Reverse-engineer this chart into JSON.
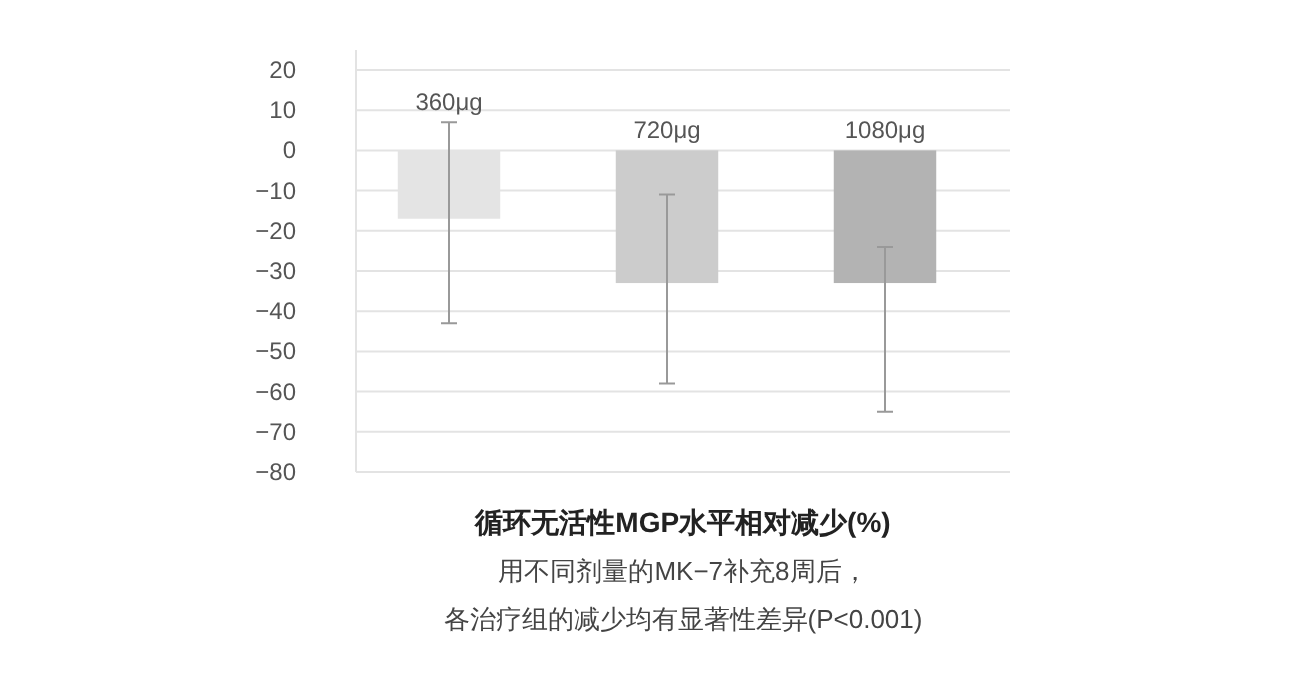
{
  "chart_data": {
    "type": "bar",
    "xlabel": "循环无活性MGP水平相对减少(%)",
    "annotations": [
      "用不同剂量的MK−7补充8周后，",
      "各治疗组的减少均有显著性差异(P<0.001)"
    ],
    "categories": [
      "360μg",
      "720μg",
      "1080μg"
    ],
    "values": [
      -17,
      -33,
      -33
    ],
    "colors": [
      "#e4e4e4",
      "#cccccc",
      "#b3b3b3"
    ],
    "errors": [
      [
        -43,
        7
      ],
      [
        -58,
        -11
      ],
      [
        -65,
        -24
      ]
    ],
    "ylim": [
      -80,
      20
    ],
    "yticks": [
      {
        "value": 20,
        "label": "20"
      },
      {
        "value": 10,
        "label": "10"
      },
      {
        "value": 0,
        "label": "0"
      },
      {
        "value": -10,
        "label": "−10"
      },
      {
        "value": -20,
        "label": "−20"
      },
      {
        "value": -30,
        "label": "−30"
      },
      {
        "value": -40,
        "label": "−40"
      },
      {
        "value": -50,
        "label": "−50"
      },
      {
        "value": -60,
        "label": "−60"
      },
      {
        "value": -70,
        "label": "−70"
      },
      {
        "value": -80,
        "label": "−80"
      }
    ],
    "grid": "y"
  }
}
